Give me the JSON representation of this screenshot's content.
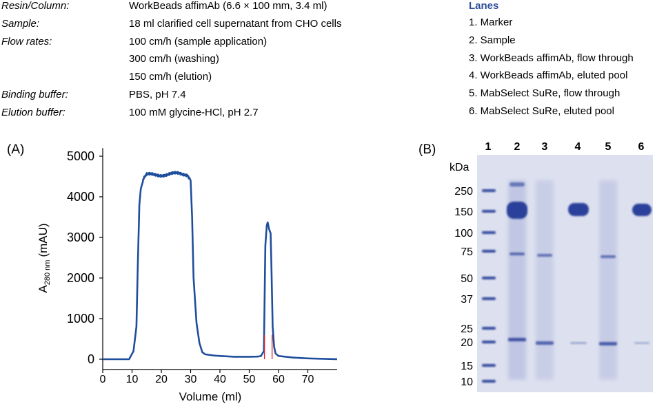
{
  "conditions": [
    {
      "label": "Resin/Column:",
      "values": [
        "WorkBeads affimAb (6.6 × 100 mm, 3.4 ml)"
      ]
    },
    {
      "label": "Sample:",
      "values": [
        "18 ml clarified cell supernatant from CHO cells"
      ]
    },
    {
      "label": "Flow rates:",
      "values": [
        "100 cm/h (sample application)",
        "300 cm/h (washing)",
        "150 cm/h (elution)"
      ]
    },
    {
      "label": "Binding buffer:",
      "values": [
        "PBS, pH 7.4"
      ]
    },
    {
      "label": "Elution buffer:",
      "values": [
        "100 mM glycine-HCl, pH 2.7"
      ]
    }
  ],
  "lanes": {
    "title": "Lanes",
    "items": [
      "1. Marker",
      "2. Sample",
      "3. WorkBeads affimAb, flow through",
      "4. WorkBeads affimAb, eluted pool",
      "5. MabSelect SuRe, flow through",
      "6. MabSelect SuRe, eluted pool"
    ]
  },
  "panel_a_label": "(A)",
  "panel_b_label": "(B)",
  "colors": {
    "trace": "#1f4e9c",
    "fraction_marks": "#e0202a",
    "gel_bg": "#dfe2f0",
    "band": "#2b3f9a",
    "lanes_title": "#2e4e9a"
  },
  "chart_data": {
    "type": "line",
    "xlabel": "Volume (ml)",
    "ylabel_main": "A",
    "ylabel_sub": "280 nm",
    "ylabel_unit": "(mAU)",
    "xlim": [
      0,
      80
    ],
    "ylim": [
      -150,
      5200
    ],
    "xticks": [
      0,
      10,
      20,
      30,
      40,
      50,
      60,
      70
    ],
    "yticks": [
      0,
      1000,
      2000,
      3000,
      4000,
      5000
    ],
    "grid": false,
    "series": [
      {
        "x": [
          0,
          9,
          10.5,
          11.5,
          12,
          12.5,
          13,
          14,
          15,
          20,
          25,
          29,
          30,
          30.5,
          31,
          32,
          33,
          34,
          35,
          38,
          40,
          45,
          50,
          53,
          54,
          55,
          55.5,
          56,
          56.3,
          56.8,
          57.3,
          57.6,
          58,
          58.5,
          59,
          60,
          65,
          70,
          80
        ],
        "y": [
          0,
          0,
          200,
          800,
          2400,
          3800,
          4200,
          4450,
          4530,
          4550,
          4560,
          4560,
          4400,
          3500,
          2000,
          900,
          400,
          170,
          120,
          90,
          80,
          60,
          60,
          65,
          80,
          200,
          2800,
          3300,
          3370,
          3200,
          3100,
          2200,
          800,
          300,
          140,
          80,
          40,
          20,
          0
        ]
      }
    ],
    "fractions": [
      55.2,
      57.8
    ],
    "fraction_height": 600
  },
  "gel": {
    "kda_label": "kDa",
    "lane_numbers": [
      "1",
      "2",
      "3",
      "4",
      "5",
      "6"
    ],
    "markers": [
      {
        "kda": "250",
        "y": 277
      },
      {
        "kda": "150",
        "y": 307
      },
      {
        "kda": "100",
        "y": 338
      },
      {
        "kda": "75",
        "y": 365
      },
      {
        "kda": "50",
        "y": 404
      },
      {
        "kda": "37",
        "y": 434
      },
      {
        "kda": "25",
        "y": 477
      },
      {
        "kda": "20",
        "y": 497
      },
      {
        "kda": "15",
        "y": 531
      },
      {
        "kda": "10",
        "y": 554
      }
    ]
  }
}
